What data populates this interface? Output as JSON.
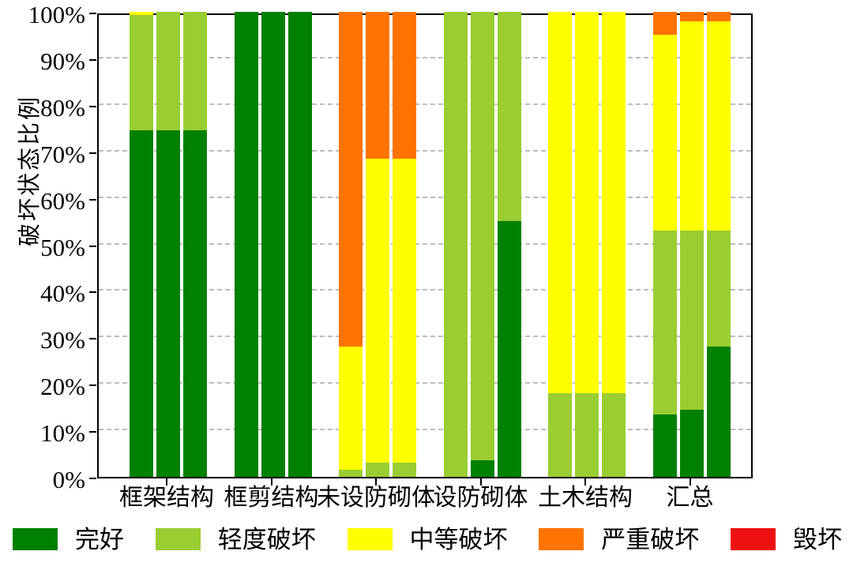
{
  "chart_data": {
    "type": "bar",
    "stacked": true,
    "orientation": "vertical",
    "title": "",
    "xlabel": "",
    "ylabel": "破坏状态比例",
    "ylim": [
      0,
      100
    ],
    "yticks": [
      "0%",
      "10%",
      "20%",
      "30%",
      "40%",
      "50%",
      "60%",
      "70%",
      "80%",
      "90%",
      "100%"
    ],
    "grid": "dashed-horizontal",
    "categories": [
      "框架结构",
      "框剪结构",
      "未设防砌体",
      "设防砌体",
      "土木结构",
      "汇总"
    ],
    "bars_per_category": 3,
    "series": [
      {
        "name": "完好",
        "color": "#008000",
        "values": [
          [
            74.5,
            74.5,
            74.5
          ],
          [
            100,
            100,
            100
          ],
          [
            0,
            0,
            0
          ],
          [
            0,
            3.5,
            55
          ],
          [
            0,
            0,
            0
          ],
          [
            13.5,
            14.5,
            28
          ]
        ]
      },
      {
        "name": "轻度破坏",
        "color": "#9ACD32",
        "values": [
          [
            24.8,
            25.5,
            25.5
          ],
          [
            0,
            0,
            0
          ],
          [
            1.5,
            3,
            3
          ],
          [
            100,
            96.5,
            45
          ],
          [
            18,
            18,
            18
          ],
          [
            39.5,
            38.5,
            25
          ]
        ]
      },
      {
        "name": "中等破坏",
        "color": "#FFFF00",
        "values": [
          [
            0.7,
            0,
            0
          ],
          [
            0,
            0,
            0
          ],
          [
            26.5,
            65.5,
            65.5
          ],
          [
            0,
            0,
            0
          ],
          [
            82,
            82,
            82
          ],
          [
            42,
            45,
            45
          ]
        ]
      },
      {
        "name": "严重破坏",
        "color": "#FF7300",
        "values": [
          [
            0,
            0,
            0
          ],
          [
            0,
            0,
            0
          ],
          [
            72,
            31.5,
            31.5
          ],
          [
            0,
            0,
            0
          ],
          [
            0,
            0,
            0
          ],
          [
            5,
            2,
            2
          ]
        ]
      },
      {
        "name": "毁坏",
        "color": "#EE1111",
        "values": [
          [
            0,
            0,
            0
          ],
          [
            0,
            0,
            0
          ],
          [
            0,
            0,
            0
          ],
          [
            0,
            0,
            0
          ],
          [
            0,
            0,
            0
          ],
          [
            0,
            0,
            0
          ]
        ]
      }
    ],
    "legend": [
      "完好",
      "轻度破坏",
      "中等破坏",
      "严重破坏",
      "毁坏"
    ],
    "legend_position": "bottom"
  }
}
